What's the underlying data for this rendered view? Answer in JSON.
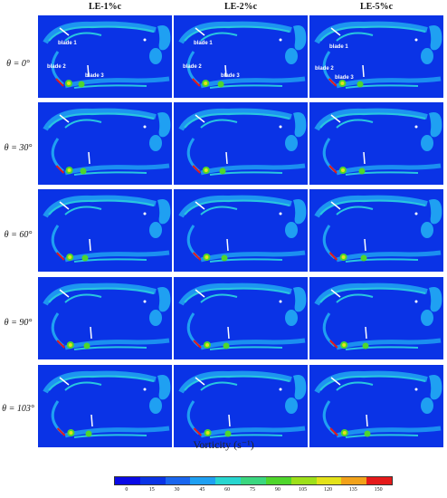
{
  "columns": [
    "LE-1%c",
    "LE-2%c",
    "LE-5%c"
  ],
  "rows": [
    {
      "label": "θ = 0°"
    },
    {
      "label": "θ = 30°"
    },
    {
      "label": "θ = 60°"
    },
    {
      "label": "θ = 90°"
    },
    {
      "label": "θ = 103°"
    }
  ],
  "blade_labels": [
    "blade 1",
    "blade 2",
    "blade 3"
  ],
  "colorbar": {
    "title": "Vorticity (s⁻¹)",
    "ticks": [
      "0",
      "15",
      "30",
      "45",
      "60",
      "75",
      "90",
      "105",
      "120",
      "135",
      "150"
    ],
    "colors": [
      "#0a0ae6",
      "#0a33e6",
      "#1a66ef",
      "#1fa0f2",
      "#28d6d0",
      "#3bd780",
      "#4fd62c",
      "#9ee01a",
      "#e4e21a",
      "#f2a21a",
      "#e51a1a"
    ]
  }
}
